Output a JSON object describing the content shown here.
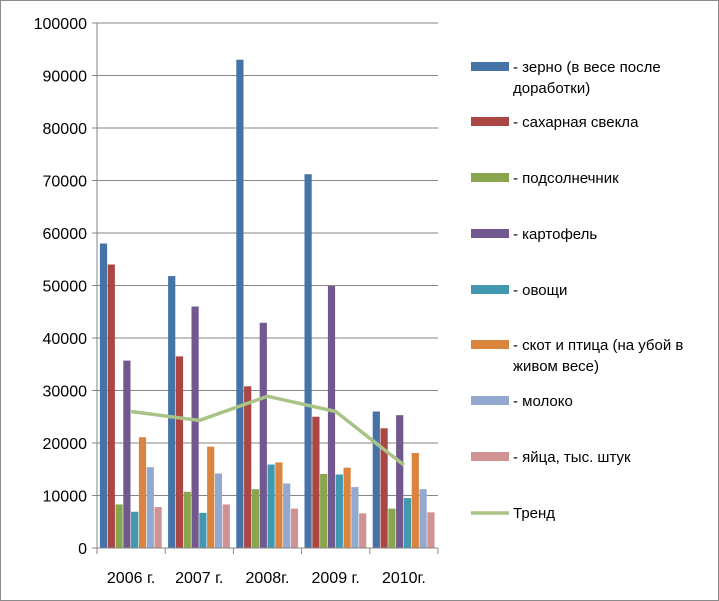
{
  "chart_data": {
    "type": "bar",
    "title": "",
    "xlabel": "",
    "ylabel": "",
    "ylim": [
      0,
      100000
    ],
    "yticks": [
      0,
      10000,
      20000,
      30000,
      40000,
      50000,
      60000,
      70000,
      80000,
      90000,
      100000
    ],
    "ytick_labels": [
      "0",
      "10000",
      "20000",
      "30000",
      "40000",
      "50000",
      "60000",
      "70000",
      "80000",
      "90000",
      "100000"
    ],
    "categories": [
      "2006 г.",
      "2007 г.",
      "2008г.",
      "2009 г.",
      "2010г."
    ],
    "grid": true,
    "legend_position": "right",
    "series": [
      {
        "name": "- зерно (в весе после доработки)",
        "color": "#4572a7",
        "values": [
          58000,
          51800,
          93000,
          71200,
          26000
        ]
      },
      {
        "name": "- сахарная свекла",
        "color": "#aa4643",
        "values": [
          54000,
          36500,
          30800,
          25000,
          22800
        ]
      },
      {
        "name": "- подсолнечник",
        "color": "#89a54e",
        "values": [
          8300,
          10700,
          11200,
          14100,
          7500
        ]
      },
      {
        "name": "- картофель",
        "color": "#71588f",
        "values": [
          35700,
          46000,
          42900,
          49900,
          25300
        ]
      },
      {
        "name": "- овощи",
        "color": "#4198af",
        "values": [
          6900,
          6700,
          15900,
          14000,
          9500
        ]
      },
      {
        "name": "- скот и птица (на убой в живом весе)",
        "color": "#db843d",
        "values": [
          21100,
          19300,
          16300,
          15300,
          18100
        ]
      },
      {
        "name": "- молоко",
        "color": "#93a9cf",
        "values": [
          15400,
          14200,
          12300,
          11600,
          11200
        ]
      },
      {
        "name": "- яйца, тыс. штук",
        "color": "#d19392",
        "values": [
          7800,
          8300,
          7500,
          6600,
          6800
        ]
      }
    ],
    "trend": {
      "name": "Тренд",
      "color": "#a9c486",
      "values": [
        26000,
        24300,
        28900,
        26000,
        15800
      ]
    }
  }
}
